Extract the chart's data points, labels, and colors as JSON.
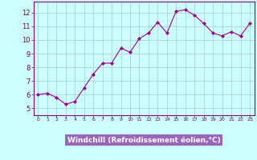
{
  "x": [
    0,
    1,
    2,
    3,
    4,
    5,
    6,
    7,
    8,
    9,
    10,
    11,
    12,
    13,
    14,
    15,
    16,
    17,
    18,
    19,
    20,
    21,
    22,
    23
  ],
  "y": [
    6.0,
    6.1,
    5.8,
    5.3,
    5.5,
    6.5,
    7.5,
    8.3,
    8.3,
    9.4,
    9.1,
    10.1,
    10.5,
    11.3,
    10.5,
    12.1,
    12.2,
    11.8,
    11.2,
    10.5,
    10.3,
    10.6,
    10.3,
    11.2
  ],
  "line_color": "#990099",
  "marker": "D",
  "marker_size": 2.0,
  "bg_color": "#ccffff",
  "grid_color": "#aacccc",
  "xlabel": "Windchill (Refroidissement éolien,°C)",
  "xlabel_color": "white",
  "xlabel_bg": "#9966bb",
  "ylim": [
    4.5,
    12.8
  ],
  "xlim": [
    -0.5,
    23.5
  ],
  "yticks": [
    5,
    6,
    7,
    8,
    9,
    10,
    11,
    12
  ],
  "xticks": [
    0,
    1,
    2,
    3,
    4,
    5,
    6,
    7,
    8,
    9,
    10,
    11,
    12,
    13,
    14,
    15,
    16,
    17,
    18,
    19,
    20,
    21,
    22,
    23
  ]
}
